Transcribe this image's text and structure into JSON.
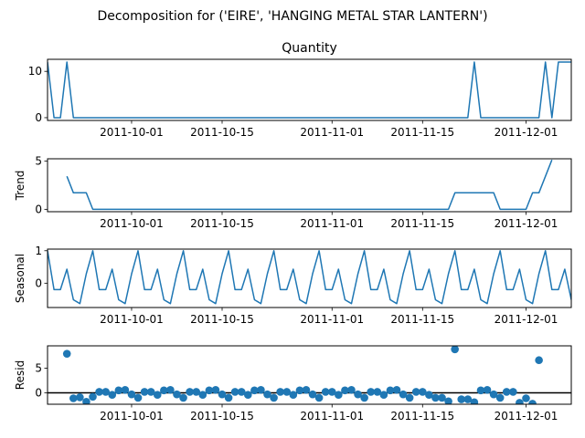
{
  "figure": {
    "title": "Decomposition for ('EIRE', 'HANGING METAL STAR LANTERN')"
  },
  "chart_data": [
    {
      "type": "line",
      "panel": "observed",
      "title": "Quantity",
      "ylabel": "",
      "color": "#1f77b4",
      "x_start": "2011-09-18",
      "x_end": "2011-12-08",
      "x_ticks": [
        "2011-10-01",
        "2011-10-15",
        "2011-11-01",
        "2011-11-15",
        "2011-12-01"
      ],
      "ylim": [
        -0.6,
        12.6
      ],
      "y_ticks": [
        0,
        10
      ],
      "points": [
        [
          "2011-09-18",
          12
        ],
        [
          "2011-09-19",
          0
        ],
        [
          "2011-09-20",
          0
        ],
        [
          "2011-09-21",
          12
        ],
        [
          "2011-09-22",
          0
        ],
        [
          "2011-11-22",
          0
        ],
        [
          "2011-11-23",
          12
        ],
        [
          "2011-11-24",
          0
        ],
        [
          "2011-12-03",
          0
        ],
        [
          "2011-12-04",
          12
        ],
        [
          "2011-12-05",
          0
        ],
        [
          "2011-12-06",
          12
        ],
        [
          "2011-12-08",
          12
        ]
      ]
    },
    {
      "type": "line",
      "panel": "trend",
      "title": "",
      "ylabel": "Trend",
      "color": "#1f77b4",
      "x_start": "2011-09-18",
      "x_end": "2011-12-08",
      "x_ticks": [
        "2011-10-01",
        "2011-10-15",
        "2011-11-01",
        "2011-11-15",
        "2011-12-01"
      ],
      "ylim": [
        -0.25,
        5.25
      ],
      "y_ticks": [
        0,
        5
      ],
      "points": [
        [
          "2011-09-21",
          3.43
        ],
        [
          "2011-09-22",
          1.71
        ],
        [
          "2011-09-24",
          1.71
        ],
        [
          "2011-09-25",
          0
        ],
        [
          "2011-11-19",
          0
        ],
        [
          "2011-11-20",
          1.71
        ],
        [
          "2011-11-26",
          1.71
        ],
        [
          "2011-11-27",
          0
        ],
        [
          "2011-12-01",
          0
        ],
        [
          "2011-12-02",
          1.71
        ],
        [
          "2011-12-03",
          1.71
        ],
        [
          "2011-12-05",
          5.14
        ]
      ]
    },
    {
      "type": "line",
      "panel": "seasonal",
      "title": "",
      "ylabel": "Seasonal",
      "color": "#1f77b4",
      "x_start": "2011-09-18",
      "x_end": "2011-12-08",
      "x_ticks": [
        "2011-10-01",
        "2011-10-15",
        "2011-11-01",
        "2011-11-15",
        "2011-12-01"
      ],
      "ylim": [
        -0.75,
        1.05
      ],
      "y_ticks": [
        0,
        1
      ],
      "start_date": "2011-09-18",
      "cycle": [
        1.0,
        -0.2,
        -0.2,
        0.43,
        -0.51,
        -0.63,
        0.29
      ]
    },
    {
      "type": "scatter",
      "panel": "resid",
      "title": "",
      "ylabel": "Resid",
      "color": "#1f77b4",
      "x_start": "2011-09-18",
      "x_end": "2011-12-08",
      "x_ticks": [
        "2011-10-01",
        "2011-10-15",
        "2011-11-01",
        "2011-11-15",
        "2011-12-01"
      ],
      "ylim": [
        -2.3,
        9.5
      ],
      "y_ticks": [
        0,
        5
      ],
      "zero_line": true,
      "points": [
        [
          "2011-09-21",
          7.9
        ],
        [
          "2011-09-22",
          -1.1
        ],
        [
          "2011-09-23",
          -0.9
        ],
        [
          "2011-09-24",
          -1.8
        ],
        [
          "2011-09-25",
          -0.8
        ],
        [
          "2011-09-26",
          0.2
        ],
        [
          "2011-09-27",
          0.2
        ],
        [
          "2011-09-28",
          -0.4
        ],
        [
          "2011-09-29",
          0.5
        ],
        [
          "2011-09-30",
          0.6
        ],
        [
          "2011-10-01",
          -0.3
        ],
        [
          "2011-10-02",
          -1.0
        ],
        [
          "2011-10-03",
          0.2
        ],
        [
          "2011-10-04",
          0.2
        ],
        [
          "2011-10-05",
          -0.4
        ],
        [
          "2011-10-06",
          0.5
        ],
        [
          "2011-10-07",
          0.6
        ],
        [
          "2011-10-08",
          -0.3
        ],
        [
          "2011-10-09",
          -1.0
        ],
        [
          "2011-10-10",
          0.2
        ],
        [
          "2011-10-11",
          0.2
        ],
        [
          "2011-10-12",
          -0.4
        ],
        [
          "2011-10-13",
          0.5
        ],
        [
          "2011-10-14",
          0.6
        ],
        [
          "2011-10-15",
          -0.3
        ],
        [
          "2011-10-16",
          -1.0
        ],
        [
          "2011-10-17",
          0.2
        ],
        [
          "2011-10-18",
          0.2
        ],
        [
          "2011-10-19",
          -0.4
        ],
        [
          "2011-10-20",
          0.5
        ],
        [
          "2011-10-21",
          0.6
        ],
        [
          "2011-10-22",
          -0.3
        ],
        [
          "2011-10-23",
          -1.0
        ],
        [
          "2011-10-24",
          0.2
        ],
        [
          "2011-10-25",
          0.2
        ],
        [
          "2011-10-26",
          -0.4
        ],
        [
          "2011-10-27",
          0.5
        ],
        [
          "2011-10-28",
          0.6
        ],
        [
          "2011-10-29",
          -0.3
        ],
        [
          "2011-10-30",
          -1.0
        ],
        [
          "2011-10-31",
          0.2
        ],
        [
          "2011-11-01",
          0.2
        ],
        [
          "2011-11-02",
          -0.4
        ],
        [
          "2011-11-03",
          0.5
        ],
        [
          "2011-11-04",
          0.6
        ],
        [
          "2011-11-05",
          -0.3
        ],
        [
          "2011-11-06",
          -1.0
        ],
        [
          "2011-11-07",
          0.2
        ],
        [
          "2011-11-08",
          0.2
        ],
        [
          "2011-11-09",
          -0.4
        ],
        [
          "2011-11-10",
          0.5
        ],
        [
          "2011-11-11",
          0.6
        ],
        [
          "2011-11-12",
          -0.3
        ],
        [
          "2011-11-13",
          -1.0
        ],
        [
          "2011-11-14",
          0.2
        ],
        [
          "2011-11-15",
          0.2
        ],
        [
          "2011-11-16",
          -0.4
        ],
        [
          "2011-11-17",
          -1.0
        ],
        [
          "2011-11-18",
          -1.0
        ],
        [
          "2011-11-19",
          -1.7
        ],
        [
          "2011-11-20",
          8.8
        ],
        [
          "2011-11-21",
          -1.3
        ],
        [
          "2011-11-22",
          -1.3
        ],
        [
          "2011-11-23",
          -1.9
        ],
        [
          "2011-11-24",
          0.5
        ],
        [
          "2011-11-25",
          0.6
        ],
        [
          "2011-11-26",
          -0.3
        ],
        [
          "2011-11-27",
          -1.0
        ],
        [
          "2011-11-28",
          0.2
        ],
        [
          "2011-11-29",
          0.2
        ],
        [
          "2011-11-30",
          -2.0
        ],
        [
          "2011-12-01",
          -1.1
        ],
        [
          "2011-12-02",
          -2.2
        ],
        [
          "2011-12-03",
          6.6
        ]
      ]
    }
  ]
}
